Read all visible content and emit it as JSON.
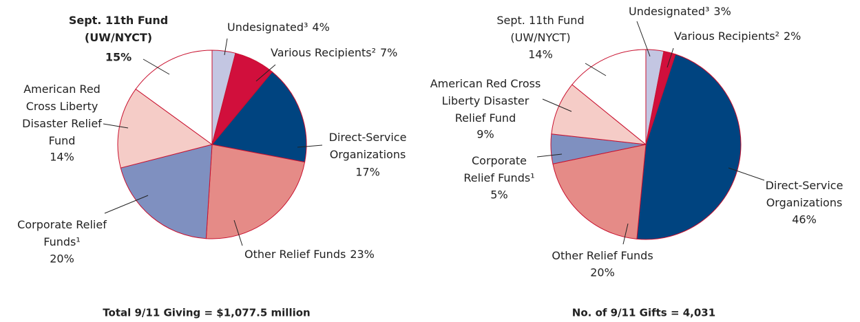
{
  "chart_data": [
    {
      "type": "pie",
      "title": "Total 9/11 Giving = $1,077.5 million",
      "categories": [
        "Undesignated³",
        "Various Recipients²",
        "Direct-Service Organizations",
        "Other Relief Funds",
        "Corporate Relief Funds¹",
        "American Red Cross Liberty Disaster Relief Fund",
        "Sept. 11th Fund (UW/NYCT)"
      ],
      "values": [
        4,
        7,
        17,
        23,
        20,
        14,
        15
      ],
      "value_labels": [
        "4%",
        "7%",
        "17%",
        "23%",
        "20%",
        "14%",
        "15%"
      ],
      "colors": [
        "#c3c6e2",
        "#d10f3c",
        "#004480",
        "#e58b87",
        "#7f90c0",
        "#f5ccc7",
        "#ffffff"
      ]
    },
    {
      "type": "pie",
      "title": "No. of 9/11 Gifts = 4,031",
      "categories": [
        "Undesignated³",
        "Various Recipients²",
        "Direct-Service Organizations",
        "Other Relief Funds",
        "Corporate Relief Funds¹",
        "American Red Cross Liberty Disaster Relief Fund",
        "Sept. 11th Fund (UW/NYCT)"
      ],
      "values": [
        3,
        2,
        46,
        20,
        5,
        9,
        14
      ],
      "value_labels": [
        "3%",
        "2%",
        "46%",
        "20%",
        "5%",
        "9%",
        "14%"
      ],
      "colors": [
        "#c3c6e2",
        "#d10f3c",
        "#004480",
        "#e58b87",
        "#7f90c0",
        "#f5ccc7",
        "#ffffff"
      ]
    }
  ]
}
